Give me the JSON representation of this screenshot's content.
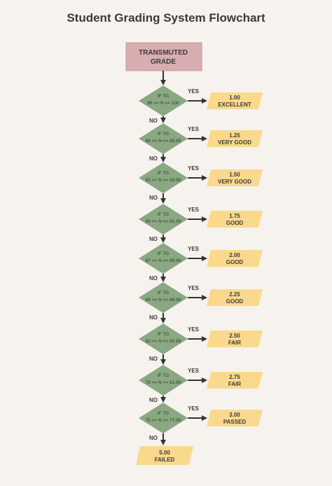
{
  "title": "Student Grading System Flowchart",
  "start": {
    "lines": [
      "TRANSMUTED",
      "GRADE"
    ]
  },
  "yes_label": "YES",
  "no_label": "NO",
  "decisions": [
    {
      "cond1": "IF TG",
      "cond2": "96 >= N <= 100",
      "grade": "1.00",
      "desc": "EXCELLENT"
    },
    {
      "cond1": "IF TG",
      "cond2": "94 >= N <= 95.99",
      "grade": "1.25",
      "desc": "VERY GOOD"
    },
    {
      "cond1": "IF TG",
      "cond2": "92 >= N <= 93.99",
      "grade": "1.50",
      "desc": "VERY GOOD"
    },
    {
      "cond1": "IF TG",
      "cond2": "89 >= N <= 91.99",
      "grade": "1.75",
      "desc": "GOOD"
    },
    {
      "cond1": "IF TG",
      "cond2": "87 >= N <= 88.99",
      "grade": "2.00",
      "desc": "GOOD"
    },
    {
      "cond1": "IF TG",
      "cond2": "84 >= N <= 86.99",
      "grade": "2.25",
      "desc": "GOOD"
    },
    {
      "cond1": "IF TG",
      "cond2": "82 >= N <= 83.99",
      "grade": "2.50",
      "desc": "FAIR"
    },
    {
      "cond1": "IF TG",
      "cond2": "79 >= N <= 81.99",
      "grade": "2.75",
      "desc": "FAIR"
    },
    {
      "cond1": "IF TG",
      "cond2": "75 >= N <= 77.99",
      "grade": "3.00",
      "desc": "PASSED"
    }
  ],
  "final": {
    "grade": "5.00",
    "desc": "FAILED"
  },
  "colors": {
    "start_fill": "#d8adb0",
    "start_stroke": "#c59a9e",
    "decision_fill": "#8aa882",
    "output_fill": "#fbd98c",
    "arrow": "#333333"
  }
}
